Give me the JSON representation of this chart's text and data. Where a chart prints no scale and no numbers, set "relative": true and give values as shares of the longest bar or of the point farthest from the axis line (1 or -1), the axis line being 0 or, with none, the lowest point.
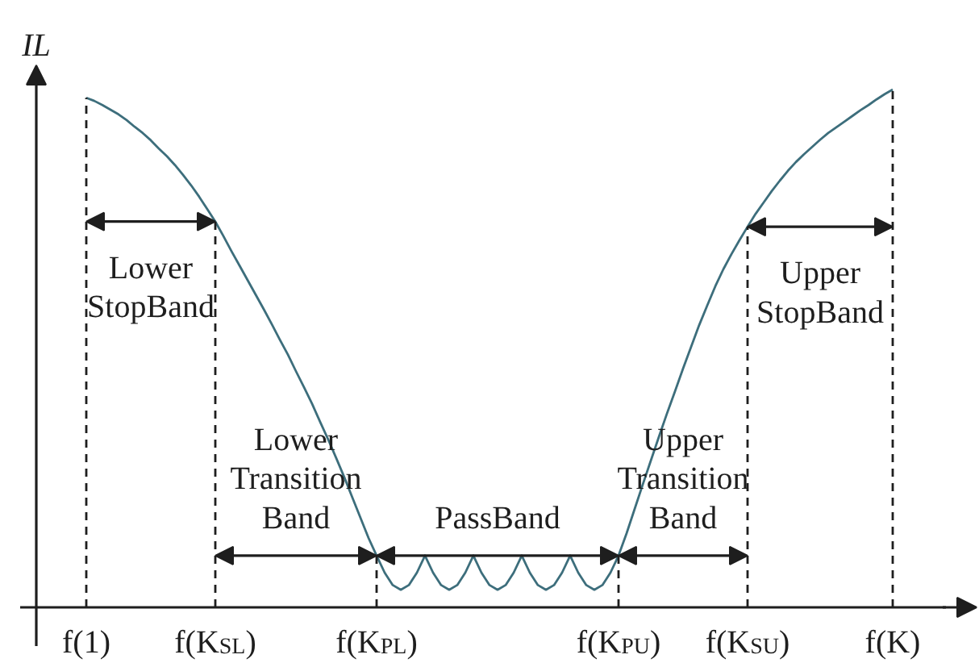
{
  "chart_data": {
    "type": "line",
    "relative": true,
    "ylabel": "IL",
    "grid": "x",
    "categories": [
      "f(1)",
      null,
      null,
      null,
      null,
      null,
      null,
      null,
      null,
      null,
      null,
      null,
      null,
      null,
      null,
      null,
      "f(K$_{SL}$)",
      null,
      null,
      null,
      null,
      null,
      null,
      null,
      null,
      null,
      null,
      null,
      null,
      null,
      null,
      null,
      null,
      null,
      null,
      null,
      "f(K$_{PL}$)",
      null,
      null,
      null,
      null,
      null,
      null,
      null,
      null,
      null,
      null,
      null,
      null,
      null,
      null,
      null,
      null,
      null,
      null,
      null,
      null,
      null,
      null,
      null,
      null,
      null,
      null,
      null,
      null,
      null,
      "f(K$_{PU}$)",
      null,
      null,
      null,
      null,
      null,
      null,
      null,
      null,
      null,
      null,
      null,
      null,
      null,
      null,
      null,
      "f(K$_{SU}$)",
      null,
      null,
      null,
      null,
      null,
      null,
      null,
      null,
      null,
      null,
      null,
      null,
      null,
      null,
      null,
      null,
      null,
      "f(K)"
    ],
    "series": [
      {
        "color": "#3d6e7c",
        "values": [
          0.984,
          0.978,
          0.97,
          0.961,
          0.952,
          0.941,
          0.928,
          0.916,
          0.902,
          0.886,
          0.871,
          0.854,
          0.835,
          0.815,
          0.793,
          0.769,
          0.745,
          0.717,
          0.688,
          0.66,
          0.632,
          0.604,
          0.576,
          0.547,
          0.517,
          0.488,
          0.456,
          0.425,
          0.393,
          0.358,
          0.324,
          0.288,
          0.251,
          0.212,
          0.173,
          0.134,
          0.1,
          0.067,
          0.043,
          0.034,
          0.043,
          0.067,
          0.1,
          0.067,
          0.043,
          0.034,
          0.043,
          0.067,
          0.1,
          0.067,
          0.043,
          0.034,
          0.043,
          0.067,
          0.1,
          0.067,
          0.043,
          0.034,
          0.043,
          0.067,
          0.1,
          0.067,
          0.043,
          0.034,
          0.043,
          0.067,
          0.1,
          0.143,
          0.19,
          0.237,
          0.283,
          0.329,
          0.374,
          0.417,
          0.461,
          0.503,
          0.545,
          0.583,
          0.62,
          0.653,
          0.682,
          0.709,
          0.735,
          0.76,
          0.782,
          0.804,
          0.824,
          0.843,
          0.86,
          0.875,
          0.889,
          0.903,
          0.916,
          0.927,
          0.938,
          0.949,
          0.96,
          0.97,
          0.981,
          0.991,
          1.0
        ]
      }
    ],
    "line_style": "solid",
    "annotations": [
      "Lower StopBand",
      "Lower Transition Band",
      "PassBand",
      "Upper Transition Band",
      "Upper StopBand"
    ]
  }
}
